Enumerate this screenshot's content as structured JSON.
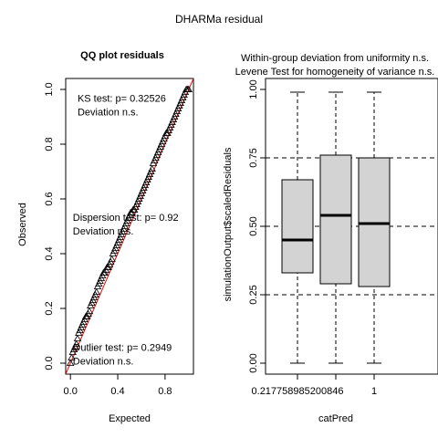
{
  "figure_title": "DHARMa residual",
  "chart_data": [
    {
      "type": "scatter",
      "title": "QQ plot residuals",
      "xlabel": "Expected",
      "ylabel": "Observed",
      "xlim": [
        0,
        1
      ],
      "ylim": [
        0,
        1
      ],
      "x_ticks": [
        "0.0",
        "0.4",
        "0.8"
      ],
      "y_ticks": [
        "0.0",
        "0.2",
        "0.4",
        "0.6",
        "0.8",
        "1.0"
      ],
      "grid": false,
      "marker": "open-triangle",
      "reference_line": {
        "from": [
          0,
          0
        ],
        "to": [
          1,
          1
        ],
        "color": "#ff0000"
      },
      "series": [
        {
          "x": [
            0.0,
            0.01,
            0.02,
            0.03,
            0.04,
            0.05,
            0.06,
            0.07,
            0.08,
            0.09,
            0.1,
            0.11,
            0.12,
            0.13,
            0.14,
            0.15,
            0.16,
            0.17,
            0.18,
            0.19,
            0.2,
            0.21,
            0.22,
            0.23,
            0.24,
            0.25,
            0.26,
            0.27,
            0.28,
            0.29,
            0.3,
            0.31,
            0.32,
            0.33,
            0.34,
            0.35,
            0.36,
            0.37,
            0.38,
            0.39,
            0.4,
            0.41,
            0.42,
            0.43,
            0.44,
            0.45,
            0.46,
            0.47,
            0.48,
            0.49,
            0.5,
            0.51,
            0.52,
            0.53,
            0.54,
            0.55,
            0.56,
            0.57,
            0.58,
            0.59,
            0.6,
            0.61,
            0.62,
            0.63,
            0.64,
            0.65,
            0.66,
            0.67,
            0.68,
            0.69,
            0.7,
            0.71,
            0.72,
            0.73,
            0.74,
            0.75,
            0.76,
            0.77,
            0.78,
            0.79,
            0.8,
            0.81,
            0.82,
            0.83,
            0.84,
            0.85,
            0.86,
            0.87,
            0.88,
            0.89,
            0.9,
            0.91,
            0.92,
            0.93,
            0.94,
            0.95,
            0.96,
            0.97,
            0.98,
            0.99,
            1.0
          ],
          "y": [
            0.0,
            0.02,
            0.04,
            0.05,
            0.06,
            0.07,
            0.09,
            0.11,
            0.12,
            0.13,
            0.14,
            0.15,
            0.16,
            0.17,
            0.17,
            0.18,
            0.19,
            0.21,
            0.22,
            0.23,
            0.24,
            0.25,
            0.26,
            0.28,
            0.29,
            0.3,
            0.31,
            0.32,
            0.33,
            0.33,
            0.34,
            0.35,
            0.35,
            0.36,
            0.37,
            0.38,
            0.4,
            0.41,
            0.42,
            0.43,
            0.44,
            0.45,
            0.46,
            0.47,
            0.48,
            0.49,
            0.5,
            0.51,
            0.52,
            0.53,
            0.54,
            0.55,
            0.55,
            0.56,
            0.56,
            0.57,
            0.58,
            0.59,
            0.6,
            0.61,
            0.62,
            0.63,
            0.64,
            0.65,
            0.66,
            0.67,
            0.68,
            0.69,
            0.7,
            0.71,
            0.73,
            0.74,
            0.75,
            0.76,
            0.77,
            0.78,
            0.79,
            0.8,
            0.81,
            0.82,
            0.83,
            0.84,
            0.84,
            0.85,
            0.86,
            0.87,
            0.88,
            0.89,
            0.9,
            0.91,
            0.92,
            0.93,
            0.94,
            0.95,
            0.96,
            0.97,
            0.98,
            0.99,
            1.0,
            1.0,
            1.0
          ]
        }
      ],
      "annotations": [
        {
          "line1": "KS test: p= 0.32526",
          "line2": "Deviation  n.s."
        },
        {
          "line1": "Dispersion test: p= 0.92",
          "line2": "Deviation n.s."
        },
        {
          "line1": "Outlier test: p= 0.2949",
          "line2": "Deviation  n.s."
        }
      ]
    },
    {
      "type": "boxplot",
      "title_lines": [
        "Within-group deviation from uniformity n.s.",
        "Levene Test for homogeneity of variance n.s."
      ],
      "xlabel": "catPred",
      "ylabel": "simulationOutput$scaledResiduals",
      "categories": [
        "0.217758985200846",
        "",
        "1"
      ],
      "ylim": [
        0,
        1
      ],
      "y_ticks": [
        "0.00",
        "0.25",
        "0.50",
        "0.75",
        "1.00"
      ],
      "reference_lines": [
        0.25,
        0.5,
        0.75
      ],
      "box_fill": "#d3d3d3",
      "boxes": [
        {
          "whisker_low": 0.0,
          "q1": 0.33,
          "median": 0.45,
          "q3": 0.67,
          "whisker_high": 0.99
        },
        {
          "whisker_low": 0.0,
          "q1": 0.29,
          "median": 0.54,
          "q3": 0.76,
          "whisker_high": 0.99
        },
        {
          "whisker_low": 0.0,
          "q1": 0.28,
          "median": 0.51,
          "q3": 0.75,
          "whisker_high": 0.99
        }
      ]
    }
  ]
}
